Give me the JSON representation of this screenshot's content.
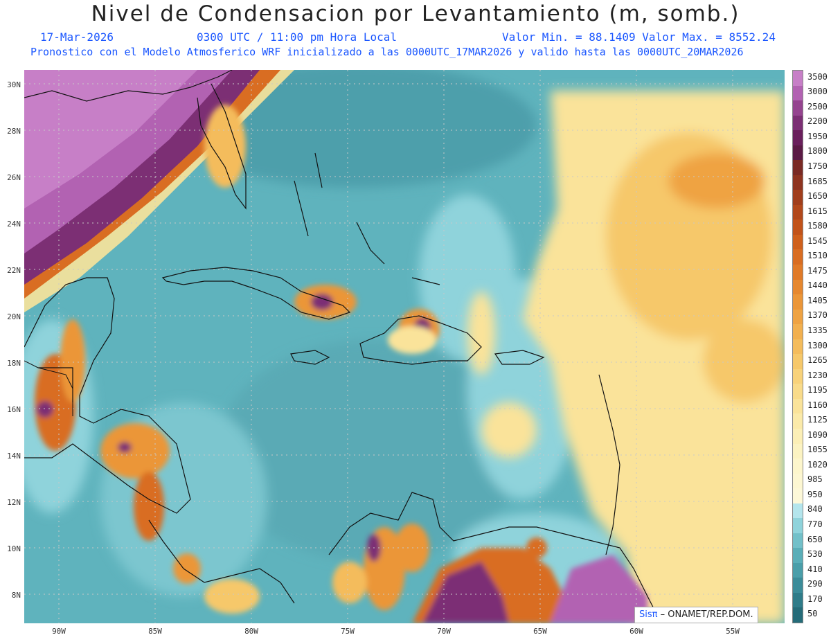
{
  "header": {
    "title": "Nivel de Condensacion por Levantamiento (m, somb.)",
    "date": "17-Mar-2026",
    "time": "0300 UTC / 11:00 pm Hora Local",
    "min_max": "Valor Min. = 88.1409  Valor Max. = 8552.24",
    "model_line": "Pronostico con el Modelo Atmosferico WRF inicializado a las 0000UTC_17MAR2026 y valido hasta las  0000UTC_20MAR2026"
  },
  "axes": {
    "lat_labels": [
      "30N",
      "28N",
      "26N",
      "24N",
      "22N",
      "20N",
      "18N",
      "16N",
      "14N",
      "12N",
      "10N",
      "8N"
    ],
    "lon_labels": [
      "90W",
      "85W",
      "80W",
      "75W",
      "70W",
      "65W",
      "60W",
      "55W"
    ]
  },
  "colorbar": {
    "labels": [
      "3500",
      "3000",
      "2500",
      "2200",
      "1950",
      "1800",
      "1750",
      "1685",
      "1650",
      "1615",
      "1580",
      "1545",
      "1510",
      "1475",
      "1440",
      "1405",
      "1370",
      "1335",
      "1300",
      "1265",
      "1230",
      "1195",
      "1160",
      "1125",
      "1090",
      "1055",
      "1020",
      "985",
      "950",
      "840",
      "770",
      "650",
      "530",
      "410",
      "290",
      "170",
      "50"
    ],
    "colors": [
      "#c77fc7",
      "#b262b2",
      "#95448f",
      "#7c2f74",
      "#6a1f5c",
      "#5b1a45",
      "#7a2a24",
      "#8e3420",
      "#a13e1c",
      "#b2481b",
      "#c2531a",
      "#cf601c",
      "#d96d22",
      "#e07a28",
      "#e6882f",
      "#eb9638",
      "#efa343",
      "#f2b04f",
      "#f4bc5c",
      "#f6c86a",
      "#f8d27a",
      "#f9db8a",
      "#fae39a",
      "#fbeaa9",
      "#fcefb6",
      "#fcf3c2",
      "#fdf6cc",
      "#fdf7d2",
      "#fdf8d8",
      "#b4e5ec",
      "#8fd3db",
      "#72c0c9",
      "#5aaeb8",
      "#4a9ea9",
      "#3b8c99",
      "#2f7c89",
      "#256c79"
    ]
  },
  "credit": {
    "sis": "Sisπ",
    "text": "– ONAMET/REP.DOM."
  },
  "legend_colors": {
    "ocean": "#5fb3bd",
    "land_moist": "#8fd3db",
    "dry_high": "#fae39a",
    "very_high": "#95448f"
  }
}
